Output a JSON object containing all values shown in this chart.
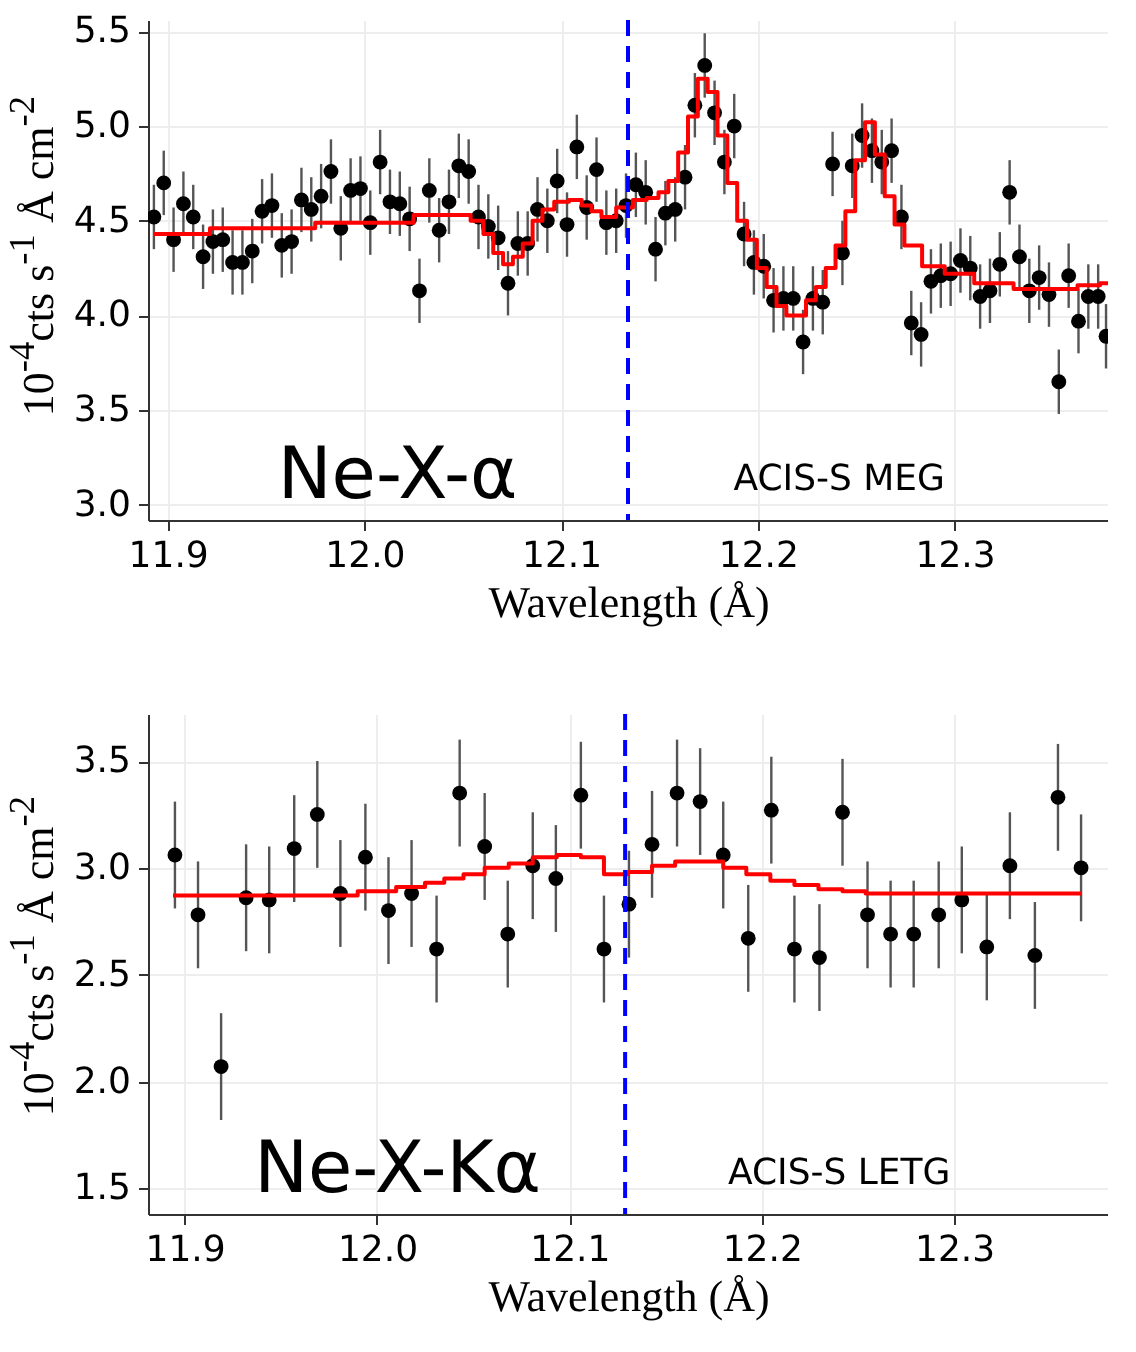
{
  "chart_data": [
    {
      "type": "scatter",
      "xlabel": "Wavelength (Å)",
      "ylabel": "10$^{-4}$cts s$^{-1}$ Å cm$^{-2}$",
      "annotations": [
        "Ne-X-α",
        "ACIS-S MEG"
      ],
      "xlim": [
        11.89,
        12.378
      ],
      "ylim": [
        2.92,
        5.56
      ],
      "xticks": [
        11.9,
        {
          "value": 12,
          "label": "12.0"
        },
        12.1,
        12.2,
        12.3
      ],
      "yticks": [
        {
          "value": 3,
          "label": "3.0"
        },
        3.5,
        {
          "value": 4,
          "label": "4.0"
        },
        4.5,
        {
          "value": 5,
          "label": "5.0"
        },
        5.5
      ],
      "grid": true,
      "series": [
        {
          "type": "scatter",
          "color": "#000000",
          "marker": "circle",
          "x": [
            11.893,
            11.898,
            11.903,
            11.908,
            11.913,
            11.918,
            11.923,
            11.928,
            11.933,
            11.938,
            11.943,
            11.948,
            11.953,
            11.958,
            11.963,
            11.968,
            11.973,
            11.978,
            11.983,
            11.988,
            11.993,
            11.998,
            12.003,
            12.008,
            12.013,
            12.018,
            12.023,
            12.028,
            12.033,
            12.038,
            12.043,
            12.048,
            12.053,
            12.058,
            12.063,
            12.068,
            12.073,
            12.078,
            12.083,
            12.088,
            12.093,
            12.098,
            12.103,
            12.108,
            12.113,
            12.118,
            12.123,
            12.128,
            12.133,
            12.138,
            12.143,
            12.148,
            12.153,
            12.158,
            12.163,
            12.168,
            12.173,
            12.178,
            12.183,
            12.188,
            12.193,
            12.198,
            12.203,
            12.208,
            12.213,
            12.218,
            12.223,
            12.228,
            12.233,
            12.238,
            12.243,
            12.248,
            12.253,
            12.258,
            12.263,
            12.268,
            12.273,
            12.278,
            12.283,
            12.288,
            12.293,
            12.298,
            12.303,
            12.308,
            12.313,
            12.318,
            12.323,
            12.328,
            12.333,
            12.338,
            12.343,
            12.348,
            12.353,
            12.358,
            12.363,
            12.368,
            12.373,
            12.377
          ],
          "values": [
            4.52,
            4.7,
            4.4,
            4.59,
            4.52,
            4.31,
            4.39,
            4.4,
            4.28,
            4.28,
            4.34,
            4.55,
            4.58,
            4.37,
            4.39,
            4.61,
            4.56,
            4.63,
            4.76,
            4.46,
            4.66,
            4.67,
            4.49,
            4.81,
            4.6,
            4.59,
            4.51,
            4.13,
            4.66,
            4.45,
            4.6,
            4.79,
            4.76,
            4.52,
            4.47,
            4.41,
            4.17,
            4.38,
            4.38,
            4.56,
            4.5,
            4.71,
            4.48,
            4.89,
            4.57,
            4.77,
            4.49,
            4.5,
            4.58,
            4.69,
            4.65,
            4.35,
            4.54,
            4.56,
            4.73,
            5.11,
            5.32,
            5.07,
            4.81,
            5.0,
            4.43,
            4.28,
            4.26,
            4.08,
            4.09,
            4.09,
            3.86,
            4.09,
            4.07,
            4.8,
            4.33,
            4.79,
            4.95,
            4.87,
            4.81,
            4.87,
            4.52,
            3.96,
            3.9,
            4.18,
            4.21,
            4.22,
            4.29,
            4.25,
            4.1,
            4.13,
            4.27,
            4.65,
            4.31,
            4.13,
            4.2,
            4.11,
            3.65,
            4.21,
            3.97,
            4.1,
            4.1,
            3.89
          ],
          "errors": [
            0.17,
            0.17,
            0.17,
            0.17,
            0.17,
            0.17,
            0.17,
            0.17,
            0.17,
            0.17,
            0.17,
            0.17,
            0.17,
            0.17,
            0.17,
            0.17,
            0.17,
            0.17,
            0.17,
            0.17,
            0.17,
            0.17,
            0.17,
            0.17,
            0.17,
            0.17,
            0.17,
            0.17,
            0.17,
            0.17,
            0.17,
            0.17,
            0.17,
            0.17,
            0.17,
            0.17,
            0.17,
            0.17,
            0.17,
            0.17,
            0.17,
            0.17,
            0.17,
            0.17,
            0.17,
            0.17,
            0.17,
            0.17,
            0.17,
            0.17,
            0.17,
            0.17,
            0.17,
            0.17,
            0.17,
            0.17,
            0.17,
            0.17,
            0.17,
            0.17,
            0.17,
            0.17,
            0.17,
            0.17,
            0.17,
            0.17,
            0.17,
            0.17,
            0.17,
            0.17,
            0.17,
            0.17,
            0.17,
            0.17,
            0.17,
            0.17,
            0.17,
            0.17,
            0.17,
            0.17,
            0.17,
            0.17,
            0.17,
            0.17,
            0.17,
            0.17,
            0.17,
            0.17,
            0.17,
            0.17,
            0.17,
            0.17,
            0.17,
            0.17,
            0.17,
            0.17,
            0.17,
            0.17
          ]
        },
        {
          "type": "step",
          "color": "#ff0000",
          "x": [
            11.893,
            11.95,
            12.0,
            12.05,
            12.058,
            12.063,
            12.068,
            12.073,
            12.078,
            12.083,
            12.088,
            12.093,
            12.1,
            12.108,
            12.113,
            12.118,
            12.123,
            12.133,
            12.14,
            12.147,
            12.152,
            12.157,
            12.162,
            12.167,
            12.172,
            12.177,
            12.182,
            12.187,
            12.192,
            12.197,
            12.202,
            12.207,
            12.212,
            12.217,
            12.222,
            12.227,
            12.232,
            12.237,
            12.242,
            12.247,
            12.252,
            12.257,
            12.262,
            12.267,
            12.272,
            12.277,
            12.29,
            12.3,
            12.32,
            12.34,
            12.355,
            12.37,
            12.378
          ],
          "values": [
            4.43,
            4.46,
            4.49,
            4.53,
            4.5,
            4.43,
            4.33,
            4.27,
            4.31,
            4.38,
            4.5,
            4.56,
            4.6,
            4.61,
            4.58,
            4.55,
            4.52,
            4.57,
            4.61,
            4.62,
            4.65,
            4.71,
            4.86,
            5.05,
            5.25,
            5.18,
            4.95,
            4.7,
            4.5,
            4.4,
            4.25,
            4.15,
            4.05,
            4.0,
            4.0,
            4.08,
            4.15,
            4.25,
            4.37,
            4.55,
            4.82,
            5.02,
            4.85,
            4.63,
            4.48,
            4.37,
            4.26,
            4.22,
            4.17,
            4.14,
            4.14,
            4.16,
            4.17
          ]
        }
      ],
      "ref_lines": [
        {
          "axis": "x",
          "value": 12.134,
          "color": "#0000ff",
          "line_style": "dashed"
        }
      ]
    },
    {
      "type": "scatter",
      "xlabel": "Wavelength (Å)",
      "ylabel": "10$^{-4}$cts s$^{-1}$ Å cm$^{-2}$",
      "annotations": [
        "Ne-X-Kα",
        "ACIS-S LETG"
      ],
      "xlim": [
        11.881,
        12.38
      ],
      "ylim": [
        1.38,
        3.72
      ],
      "xticks": [
        11.9,
        {
          "value": 12,
          "label": "12.0"
        },
        12.1,
        12.2,
        12.3
      ],
      "yticks": [
        1.5,
        {
          "value": 2,
          "label": "2.0"
        },
        2.5,
        {
          "value": 3,
          "label": "3.0"
        },
        3.5
      ],
      "grid": true,
      "series": [
        {
          "type": "scatter",
          "color": "#000000",
          "marker": "circle",
          "x": [
            11.895,
            11.907,
            11.919,
            11.932,
            11.944,
            11.957,
            11.969,
            11.981,
            11.994,
            12.006,
            12.018,
            12.031,
            12.043,
            12.056,
            12.068,
            12.081,
            12.093,
            12.106,
            12.118,
            12.131,
            12.143,
            12.156,
            12.168,
            12.18,
            12.193,
            12.205,
            12.217,
            12.23,
            12.242,
            12.255,
            12.267,
            12.279,
            12.292,
            12.304,
            12.317,
            12.329,
            12.342,
            12.354,
            12.366
          ],
          "values": [
            3.06,
            2.78,
            2.07,
            2.86,
            2.85,
            3.09,
            3.25,
            2.88,
            3.05,
            2.8,
            2.88,
            2.62,
            3.35,
            3.1,
            2.69,
            3.01,
            2.95,
            3.34,
            2.62,
            2.83,
            3.11,
            3.35,
            3.31,
            3.06,
            2.67,
            3.27,
            2.62,
            2.58,
            3.26,
            2.78,
            2.69,
            2.69,
            2.78,
            2.85,
            2.63,
            3.01,
            2.59,
            3.33,
            3.0
          ],
          "errors": [
            0.25,
            0.25,
            0.25,
            0.25,
            0.25,
            0.25,
            0.25,
            0.25,
            0.25,
            0.25,
            0.25,
            0.25,
            0.25,
            0.25,
            0.25,
            0.25,
            0.25,
            0.25,
            0.25,
            0.25,
            0.25,
            0.25,
            0.25,
            0.25,
            0.25,
            0.25,
            0.25,
            0.25,
            0.25,
            0.25,
            0.25,
            0.25,
            0.25,
            0.25,
            0.25,
            0.25,
            0.25,
            0.25,
            0.25
          ]
        },
        {
          "type": "step",
          "color": "#ff0000",
          "x": [
            11.894,
            11.98,
            12.0,
            12.02,
            12.03,
            12.04,
            12.05,
            12.062,
            12.075,
            12.087,
            12.1,
            12.112,
            12.124,
            12.137,
            12.149,
            12.161,
            12.174,
            12.186,
            12.198,
            12.211,
            12.223,
            12.236,
            12.248,
            12.26,
            12.3,
            12.366
          ],
          "values": [
            2.87,
            2.87,
            2.89,
            2.91,
            2.93,
            2.95,
            2.97,
            3.0,
            3.02,
            3.05,
            3.06,
            3.05,
            2.97,
            2.98,
            3.01,
            3.03,
            3.03,
            3.0,
            2.97,
            2.94,
            2.92,
            2.9,
            2.89,
            2.88,
            2.88,
            2.88
          ]
        }
      ],
      "ref_lines": [
        {
          "axis": "x",
          "value": 12.129,
          "color": "#0000ff",
          "line_style": "dashed"
        }
      ]
    }
  ]
}
